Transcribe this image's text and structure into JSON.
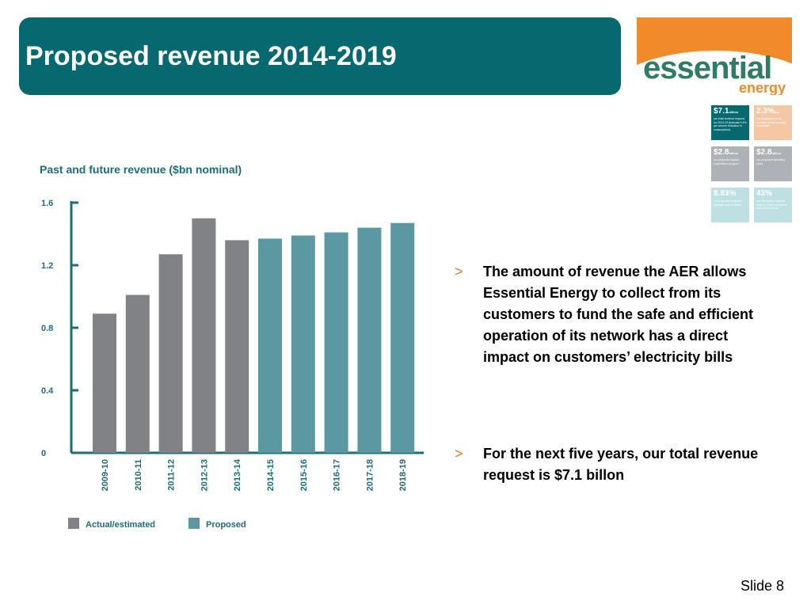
{
  "slide": {
    "title": "Proposed revenue 2014-2019",
    "number_label": "Slide 8"
  },
  "logo": {
    "word_main": "essential",
    "word_sub": "energy"
  },
  "tiles": [
    {
      "big": "$7.1",
      "unit": "billion",
      "small": "our total revenue request for 2014-19 (forecast 9.4% per annum reduction in consumption)",
      "color": "#05696f"
    },
    {
      "big": "2.3%",
      "unit": "p.a.",
      "small": "our proposed annual increase on the average household",
      "color": "#f5c7a4"
    },
    {
      "big": "$2.8",
      "unit": "billion",
      "small": "our proposed capital expenditure program",
      "color": "#aeb1b5"
    },
    {
      "big": "$2.8",
      "unit": "billion",
      "small": "our proposed operating costs",
      "color": "#aeb1b5"
    },
    {
      "big": "8.83%",
      "unit": "",
      "small": "our proposed weighted average cost of capital",
      "color": "#bde0e3"
    },
    {
      "big": "43%",
      "unit": "",
      "small": "the distribution network portion of the customer's total electricity bill",
      "color": "#bde0e3"
    }
  ],
  "chart_data": {
    "type": "bar",
    "title": "Past and future revenue ($bn nominal)",
    "xlabel": "",
    "ylabel": "",
    "categories": [
      "2009-10",
      "2010-11",
      "2011-12",
      "2012-13",
      "2013-14",
      "2014-15",
      "2015-16",
      "2016-17",
      "2017-18",
      "2018-19"
    ],
    "values": [
      0.89,
      1.01,
      1.27,
      1.5,
      1.36,
      1.37,
      1.39,
      1.41,
      1.44,
      1.47
    ],
    "groups": [
      "actual",
      "actual",
      "actual",
      "actual",
      "actual",
      "proposed",
      "proposed",
      "proposed",
      "proposed",
      "proposed"
    ],
    "ylim": [
      0,
      1.6
    ],
    "yticks": [
      "0",
      "0.4",
      "0.8",
      "1.2",
      "1.6"
    ],
    "grid": false,
    "legend_position": "bottom",
    "legend": [
      {
        "key": "actual",
        "label": "Actual/estimated",
        "color": "#818285"
      },
      {
        "key": "proposed",
        "label": "Proposed",
        "color": "#5b98a1"
      }
    ],
    "axis_color": "#1b6e77",
    "label_color": "#1b6e77"
  },
  "bullets": [
    {
      "marker": ">",
      "text": "The amount of revenue the AER allows Essential Energy to collect from its customers to fund the safe and efficient operation of its network has a direct impact on customers’ electricity bills"
    },
    {
      "marker": ">",
      "text": "For the next five years, our total revenue request is $7.1 billon"
    }
  ]
}
